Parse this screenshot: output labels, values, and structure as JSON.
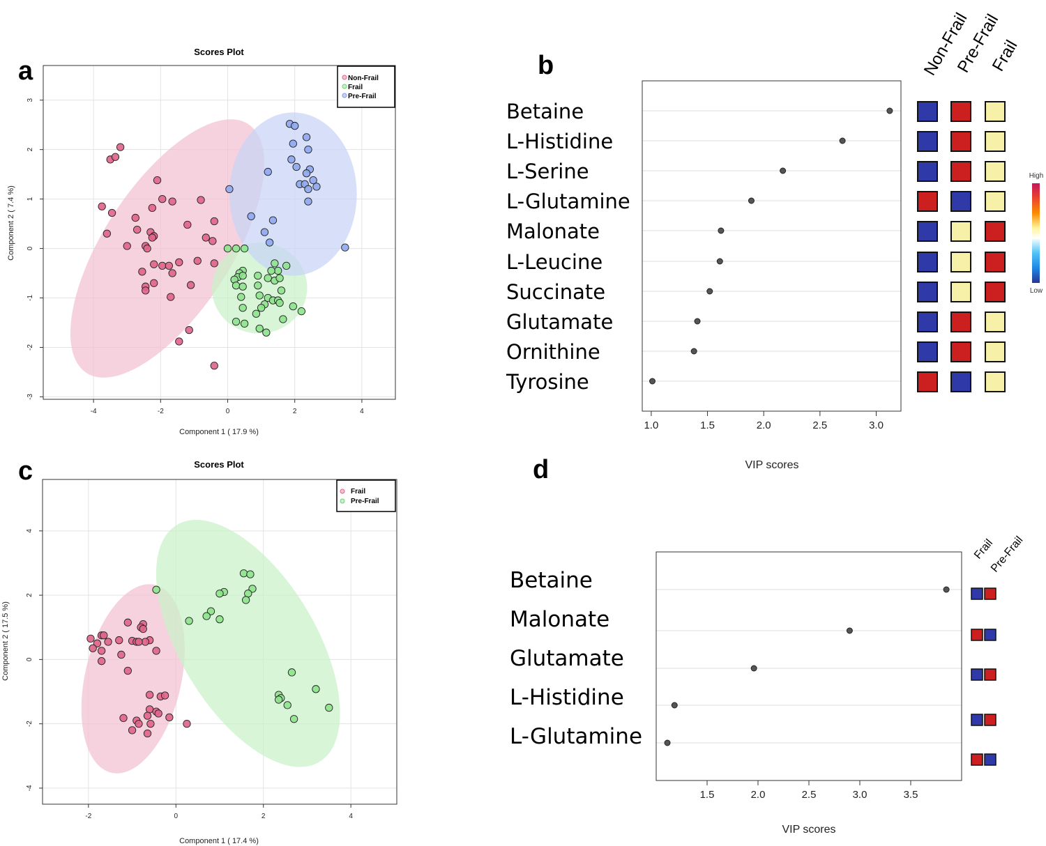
{
  "panels": {
    "a": "a",
    "b": "b",
    "c": "c",
    "d": "d"
  },
  "colors": {
    "pink_fill": "#f3c1d3",
    "pink_point": "#e0648a",
    "green_fill": "#c9f1c9",
    "green_point": "#8ee38e",
    "blue_fill": "#c8d4f5",
    "blue_point": "#8fa8ee",
    "heat_high": "#cc1f1f",
    "heat_mid": "#f6f0a8",
    "heat_low": "#2f3aa8"
  },
  "chart_data": [
    {
      "id": "a",
      "type": "scatter",
      "title": "Scores Plot",
      "xlabel": "Component 1 ( 17.9 %)",
      "ylabel": "Component 2 ( 7.4 %)",
      "xlim": [
        -5.5,
        5
      ],
      "ylim": [
        -3.05,
        3.7
      ],
      "xticks": [
        -4,
        -2,
        0,
        2,
        4
      ],
      "yticks": [
        -3,
        -2,
        -1,
        0,
        1,
        2,
        3
      ],
      "legend_position": "top-right",
      "series": [
        {
          "name": "Non-Frail",
          "color": "#e0648a",
          "fill": "#f3c1d3",
          "ellipse": {
            "cx": -1.8,
            "cy": 0.0,
            "rx": 1.9,
            "ry": 3.0,
            "angle": 33
          },
          "points": [
            [
              -3.2,
              2.05
            ],
            [
              -3.5,
              1.8
            ],
            [
              -3.35,
              1.85
            ],
            [
              -2.1,
              1.38
            ],
            [
              -3.75,
              0.85
            ],
            [
              -3.45,
              0.72
            ],
            [
              -1.95,
              1.0
            ],
            [
              -1.65,
              0.95
            ],
            [
              -0.8,
              0.98
            ],
            [
              -2.25,
              0.82
            ],
            [
              -2.75,
              0.62
            ],
            [
              -1.2,
              0.48
            ],
            [
              -0.4,
              0.55
            ],
            [
              -3.6,
              0.3
            ],
            [
              -2.7,
              0.38
            ],
            [
              -2.3,
              0.33
            ],
            [
              -2.2,
              0.25
            ],
            [
              -2.25,
              0.22
            ],
            [
              -0.65,
              0.22
            ],
            [
              -0.45,
              0.15
            ],
            [
              -3.0,
              0.05
            ],
            [
              -2.45,
              0.05
            ],
            [
              -2.4,
              0.0
            ],
            [
              -1.95,
              -0.35
            ],
            [
              -1.75,
              -0.35
            ],
            [
              -1.45,
              -0.28
            ],
            [
              -2.2,
              -0.32
            ],
            [
              -0.9,
              -0.25
            ],
            [
              -0.4,
              -0.3
            ],
            [
              -2.55,
              -0.47
            ],
            [
              -1.65,
              -0.5
            ],
            [
              -2.2,
              -0.7
            ],
            [
              -2.45,
              -0.77
            ],
            [
              -2.45,
              -0.85
            ],
            [
              -1.1,
              -0.74
            ],
            [
              -1.7,
              -0.98
            ],
            [
              -1.15,
              -1.65
            ],
            [
              -1.45,
              -1.88
            ],
            [
              -0.4,
              -2.37
            ]
          ]
        },
        {
          "name": "Frail",
          "color": "#8ee38e",
          "fill": "#c9f1c9",
          "ellipse": {
            "cx": 0.95,
            "cy": -0.8,
            "rx": 1.42,
            "ry": 0.92,
            "angle": -6
          },
          "points": [
            [
              0.0,
              0.0
            ],
            [
              0.25,
              0.0
            ],
            [
              0.5,
              0.0
            ],
            [
              0.45,
              -0.45
            ],
            [
              0.35,
              -0.5
            ],
            [
              0.3,
              -0.58
            ],
            [
              0.2,
              -0.63
            ],
            [
              0.25,
              -0.75
            ],
            [
              0.45,
              -0.77
            ],
            [
              0.45,
              -0.55
            ],
            [
              0.9,
              -0.55
            ],
            [
              1.4,
              -0.3
            ],
            [
              1.5,
              -0.45
            ],
            [
              1.75,
              -0.35
            ],
            [
              1.3,
              -0.45
            ],
            [
              1.2,
              -0.6
            ],
            [
              1.4,
              -0.65
            ],
            [
              1.55,
              -0.6
            ],
            [
              0.9,
              -0.75
            ],
            [
              0.95,
              -0.95
            ],
            [
              1.2,
              -1.0
            ],
            [
              1.35,
              -1.05
            ],
            [
              1.5,
              -1.05
            ],
            [
              1.55,
              -1.1
            ],
            [
              1.6,
              -0.85
            ],
            [
              0.4,
              -0.98
            ],
            [
              1.1,
              -1.13
            ],
            [
              1.0,
              -1.2
            ],
            [
              0.85,
              -1.32
            ],
            [
              0.45,
              -1.2
            ],
            [
              0.25,
              -1.48
            ],
            [
              0.5,
              -1.52
            ],
            [
              2.2,
              -1.27
            ],
            [
              1.95,
              -1.17
            ],
            [
              1.65,
              -1.43
            ],
            [
              0.95,
              -1.62
            ],
            [
              1.15,
              -1.7
            ]
          ]
        },
        {
          "name": "Pre-Frail",
          "color": "#8fa8ee",
          "fill": "#c8d4f5",
          "ellipse": {
            "cx": 1.95,
            "cy": 1.1,
            "rx": 1.9,
            "ry": 1.65,
            "angle": 0
          },
          "points": [
            [
              1.85,
              2.52
            ],
            [
              2.0,
              2.48
            ],
            [
              2.35,
              2.25
            ],
            [
              1.95,
              2.12
            ],
            [
              2.4,
              2.0
            ],
            [
              1.9,
              1.8
            ],
            [
              2.05,
              1.65
            ],
            [
              2.45,
              1.6
            ],
            [
              2.35,
              1.52
            ],
            [
              2.55,
              1.38
            ],
            [
              2.15,
              1.3
            ],
            [
              2.3,
              1.3
            ],
            [
              2.65,
              1.25
            ],
            [
              2.4,
              1.2
            ],
            [
              1.2,
              1.55
            ],
            [
              0.05,
              1.2
            ],
            [
              2.4,
              0.95
            ],
            [
              0.7,
              0.65
            ],
            [
              1.35,
              0.57
            ],
            [
              1.1,
              0.33
            ],
            [
              1.25,
              0.12
            ],
            [
              3.5,
              0.02
            ]
          ]
        }
      ]
    },
    {
      "id": "b",
      "type": "scatter",
      "xlabel": "VIP scores",
      "xlim": [
        0.92,
        3.22
      ],
      "xticks": [
        "1.0",
        "1.5",
        "2.0",
        "2.5",
        "3.0"
      ],
      "categories": [
        "Betaine",
        "L-Histidine",
        "L-Serine",
        "L-Glutamine",
        "Malonate",
        "L-Leucine",
        "Succinate",
        "Glutamate",
        "Ornithine",
        "Tyrosine"
      ],
      "values": [
        3.12,
        2.7,
        2.17,
        1.89,
        1.62,
        1.61,
        1.52,
        1.41,
        1.38,
        1.01
      ],
      "groups": [
        "Non-Frail",
        "Pre-Frail",
        "Frail"
      ],
      "heatmap": [
        [
          "low",
          "high",
          "mid"
        ],
        [
          "low",
          "high",
          "mid"
        ],
        [
          "low",
          "high",
          "mid"
        ],
        [
          "high",
          "low",
          "mid"
        ],
        [
          "low",
          "mid",
          "high"
        ],
        [
          "low",
          "mid",
          "high"
        ],
        [
          "low",
          "mid",
          "high"
        ],
        [
          "low",
          "high",
          "mid"
        ],
        [
          "low",
          "high",
          "mid"
        ],
        [
          "high",
          "low",
          "mid"
        ]
      ],
      "scale": {
        "high": "High",
        "low": "Low"
      }
    },
    {
      "id": "c",
      "type": "scatter",
      "title": "Scores Plot",
      "xlabel": "Component 1 ( 17.4 %)",
      "ylabel": "Component 2 ( 17.5 %)",
      "xlim": [
        -3.05,
        5.05
      ],
      "ylim": [
        -4.5,
        5.6
      ],
      "xticks": [
        -2,
        0,
        2,
        4
      ],
      "yticks": [
        -4,
        -2,
        0,
        2,
        4
      ],
      "legend_position": "top-right",
      "series": [
        {
          "name": "Frail",
          "color": "#e0648a",
          "fill": "#f3c1d3",
          "ellipse": {
            "cx": -0.98,
            "cy": -0.6,
            "rx": 1.1,
            "ry": 3.0,
            "angle": 13
          },
          "points": [
            [
              -1.1,
              1.15
            ],
            [
              -0.75,
              1.1
            ],
            [
              -0.8,
              1.0
            ],
            [
              -0.75,
              0.95
            ],
            [
              -1.7,
              0.75
            ],
            [
              -1.65,
              0.75
            ],
            [
              -1.95,
              0.65
            ],
            [
              -1.3,
              0.6
            ],
            [
              -1.0,
              0.58
            ],
            [
              -0.9,
              0.55
            ],
            [
              -0.6,
              0.6
            ],
            [
              -1.55,
              0.55
            ],
            [
              -0.7,
              0.55
            ],
            [
              -0.85,
              0.55
            ],
            [
              -1.8,
              0.5
            ],
            [
              -1.9,
              0.35
            ],
            [
              -1.7,
              0.27
            ],
            [
              -0.45,
              0.27
            ],
            [
              -1.25,
              0.15
            ],
            [
              -1.7,
              -0.05
            ],
            [
              -1.1,
              -0.35
            ],
            [
              -0.6,
              -1.1
            ],
            [
              -0.35,
              -1.15
            ],
            [
              -0.25,
              -1.12
            ],
            [
              -0.6,
              -1.55
            ],
            [
              -0.45,
              -1.62
            ],
            [
              -0.4,
              -1.68
            ],
            [
              -1.2,
              -1.82
            ],
            [
              -0.65,
              -1.75
            ],
            [
              -0.9,
              -1.9
            ],
            [
              -0.85,
              -2.0
            ],
            [
              -0.58,
              -2.0
            ],
            [
              -1.0,
              -2.2
            ],
            [
              -0.65,
              -2.3
            ],
            [
              -0.15,
              -1.8
            ],
            [
              0.25,
              -2.0
            ]
          ]
        },
        {
          "name": "Pre-Frail",
          "color": "#8ee38e",
          "fill": "#c9f1c9",
          "ellipse": {
            "cx": 1.65,
            "cy": 0.5,
            "rx": 1.55,
            "ry": 4.3,
            "angle": -31
          },
          "points": [
            [
              -0.45,
              2.17
            ],
            [
              1.55,
              2.68
            ],
            [
              1.7,
              2.65
            ],
            [
              1.75,
              2.2
            ],
            [
              1.65,
              2.05
            ],
            [
              1.1,
              2.1
            ],
            [
              1.0,
              2.05
            ],
            [
              1.6,
              1.85
            ],
            [
              0.8,
              1.5
            ],
            [
              0.7,
              1.35
            ],
            [
              1.0,
              1.25
            ],
            [
              0.3,
              1.2
            ],
            [
              2.65,
              -0.4
            ],
            [
              3.2,
              -0.92
            ],
            [
              2.35,
              -1.1
            ],
            [
              2.4,
              -1.2
            ],
            [
              2.35,
              -1.25
            ],
            [
              2.55,
              -1.42
            ],
            [
              3.5,
              -1.5
            ],
            [
              2.7,
              -1.85
            ]
          ]
        }
      ]
    },
    {
      "id": "d",
      "type": "scatter",
      "xlabel": "VIP scores",
      "xlim": [
        1.0,
        4.0
      ],
      "xticks": [
        "1.5",
        "2.0",
        "2.5",
        "3.0",
        "3.5"
      ],
      "categories": [
        "Betaine",
        "Malonate",
        "Glutamate",
        "L-Histidine",
        "L-Glutamine"
      ],
      "values": [
        3.85,
        2.9,
        1.96,
        1.18,
        1.11
      ],
      "groups": [
        "Frail",
        "Pre-Frail"
      ],
      "heatmap": [
        [
          "low",
          "high"
        ],
        [
          "high",
          "low"
        ],
        [
          "low",
          "high"
        ],
        [
          "low",
          "high"
        ],
        [
          "high",
          "low"
        ]
      ]
    }
  ]
}
